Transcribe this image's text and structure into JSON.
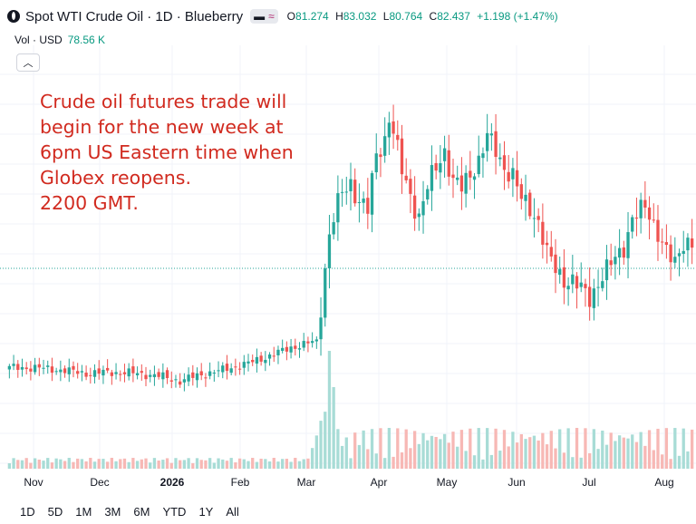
{
  "header": {
    "title": "Spot WTI Crude Oil · 1D · Blueberry",
    "ohlc": [
      {
        "k": "O",
        "v": "81.274"
      },
      {
        "k": "H",
        "v": "83.032"
      },
      {
        "k": "L",
        "v": "80.764"
      },
      {
        "k": "C",
        "v": "82.437"
      }
    ],
    "change": "+1.198 (+1.47%)",
    "icons": [
      "symbol-logo-icon",
      "minus-icon",
      "wave-icon"
    ]
  },
  "volume": {
    "label": "Vol · USD",
    "value": "78.56 K"
  },
  "annotation": {
    "lines": [
      "Crude oil futures trade will",
      "begin for the new week at",
      "6pm US Eastern time when",
      "Globex reopens.",
      "2200 GMT."
    ],
    "color": "#d12a1f"
  },
  "x_axis": {
    "labels": [
      "Nov",
      "Dec",
      "2026",
      "Feb",
      "Mar",
      "Apr",
      "May",
      "Jun",
      "Jul",
      "Aug"
    ]
  },
  "ranges": [
    "1D",
    "5D",
    "1M",
    "3M",
    "6M",
    "YTD",
    "1Y",
    "All"
  ],
  "colors": {
    "up": "#26a69a",
    "down": "#ef5350",
    "vol_up": "#a8dcd6",
    "vol_down": "#f7b8b5"
  },
  "chart_data": {
    "type": "candlestick",
    "key_points": [
      [
        0,
        12
      ],
      [
        6,
        12
      ],
      [
        12,
        11.8
      ],
      [
        18,
        11.5
      ],
      [
        24,
        11.6
      ],
      [
        30,
        11.5
      ],
      [
        36,
        11.2
      ],
      [
        40,
        10.8
      ],
      [
        44,
        11.3
      ],
      [
        50,
        11.8
      ],
      [
        56,
        12.4
      ],
      [
        62,
        13.2
      ],
      [
        66,
        13.8
      ],
      [
        70,
        14.2
      ],
      [
        72,
        14.3
      ],
      [
        73,
        17.5
      ],
      [
        74,
        21
      ],
      [
        75,
        24
      ],
      [
        76,
        25.5
      ],
      [
        78,
        27.5
      ],
      [
        80,
        28.5
      ],
      [
        82,
        27
      ],
      [
        84,
        26
      ],
      [
        86,
        31
      ],
      [
        88,
        32.5
      ],
      [
        89,
        34.5
      ],
      [
        90,
        33
      ],
      [
        92,
        29.5
      ],
      [
        94,
        27.5
      ],
      [
        96,
        25.5
      ],
      [
        98,
        28
      ],
      [
        100,
        30
      ],
      [
        102,
        31.5
      ],
      [
        104,
        28.5
      ],
      [
        106,
        28
      ],
      [
        108,
        29.5
      ],
      [
        110,
        30.5
      ],
      [
        112,
        32.5
      ],
      [
        114,
        31.5
      ],
      [
        116,
        30
      ],
      [
        118,
        29
      ],
      [
        120,
        27
      ],
      [
        122,
        26.5
      ],
      [
        124,
        25
      ],
      [
        126,
        22
      ],
      [
        128,
        21
      ],
      [
        130,
        20
      ],
      [
        132,
        19.5
      ],
      [
        134,
        19
      ],
      [
        136,
        18.5
      ],
      [
        138,
        19.5
      ],
      [
        140,
        20.5
      ],
      [
        142,
        22
      ],
      [
        144,
        23
      ],
      [
        146,
        25
      ],
      [
        148,
        26
      ],
      [
        149,
        26.5
      ],
      [
        150,
        26
      ],
      [
        152,
        24
      ],
      [
        154,
        22
      ],
      [
        156,
        21.5
      ],
      [
        158,
        23.5
      ],
      [
        160,
        22.8
      ]
    ],
    "y_axis": {
      "min": 8,
      "max": 40,
      "tick_labels_visible": false
    },
    "last_price_line": "dotted"
  }
}
